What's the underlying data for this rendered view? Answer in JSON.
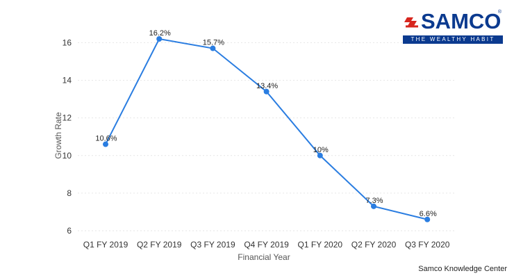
{
  "brand": {
    "name": "SAMCO",
    "tagline": "THE WEALTHY HABIT",
    "registered_mark": "®",
    "color": "#0b3a8f",
    "icon": "samco-logo-icon"
  },
  "footer": {
    "source": "Samco Knowledge Center"
  },
  "chart_data": {
    "type": "line",
    "title": "",
    "xlabel": "Financial Year",
    "ylabel": "Growth Rate",
    "categories": [
      "Q1 FY 2019",
      "Q2 FY 2019",
      "Q3 FY 2019",
      "Q4 FY 2019",
      "Q1 FY 2020",
      "Q2 FY 2020",
      "Q3 FY 2020"
    ],
    "values": [
      10.6,
      16.2,
      15.7,
      13.4,
      10,
      7.3,
      6.6
    ],
    "data_labels": [
      "10.6%",
      "16.2%",
      "15.7%",
      "13.4%",
      "10%",
      "7.3%",
      "6.6%"
    ],
    "y_ticks": [
      6,
      8,
      10,
      12,
      14,
      16
    ],
    "ylim": [
      6,
      17
    ],
    "grid": true,
    "line_color": "#2a7de1"
  }
}
